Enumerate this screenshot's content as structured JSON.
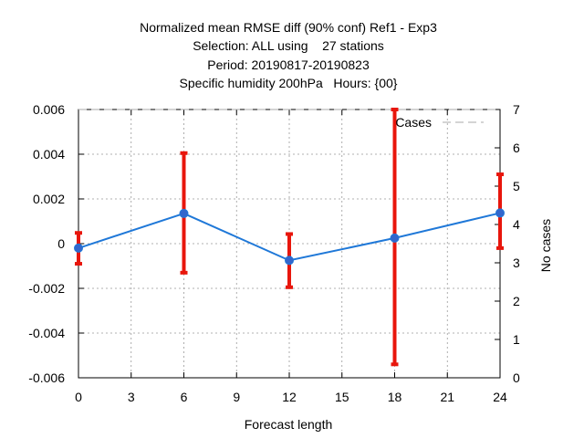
{
  "chart_data": {
    "type": "line",
    "title_lines": [
      "Normalized mean RMSE diff (90% conf) Ref1 - Exp3",
      "Selection: ALL using    27 stations",
      "Period: 20190817-20190823",
      "Specific humidity 200hPa   Hours: {00}"
    ],
    "xlabel": "Forecast length",
    "ylabel_left": "",
    "ylabel_right": "No cases",
    "xlim": [
      0,
      24
    ],
    "ylim": [
      -0.006,
      0.006
    ],
    "ylim_right": [
      0,
      7
    ],
    "x_ticks": [
      0,
      3,
      6,
      9,
      12,
      15,
      18,
      21,
      24
    ],
    "x_tick_labels": [
      "0",
      "3",
      "6",
      "9",
      "12",
      "15",
      "18",
      "21",
      "24"
    ],
    "y_ticks": [
      -0.006,
      -0.004,
      -0.002,
      0,
      0.002,
      0.004,
      0.006
    ],
    "y_tick_labels": [
      "-0.006",
      "-0.004",
      "-0.002",
      "0",
      "0.002",
      "0.004",
      "0.006"
    ],
    "y2_ticks": [
      0,
      1,
      2,
      3,
      4,
      5,
      6,
      7
    ],
    "y2_tick_labels": [
      "0",
      "1",
      "2",
      "3",
      "4",
      "5",
      "6",
      "7"
    ],
    "grid": true,
    "legend": {
      "position": "top-right",
      "entries": [
        "Cases"
      ]
    },
    "series": [
      {
        "x": [
          0,
          6,
          12,
          18,
          24
        ],
        "values": [
          -0.0002,
          0.00135,
          -0.00075,
          0.00025,
          0.00137
        ],
        "err_low": [
          -0.0009,
          -0.0013,
          -0.00195,
          -0.0054,
          -0.0002
        ],
        "err_high": [
          0.00048,
          0.00405,
          0.00043,
          0.006,
          0.0031
        ],
        "color": "#1f78d8"
      },
      {
        "name": "Cases",
        "axis": "right",
        "x": [
          0,
          6,
          12,
          18,
          24
        ],
        "values": [
          7,
          7,
          7,
          7,
          7
        ],
        "color": "#aaaaaa",
        "dash": true
      }
    ],
    "colors": {
      "line": "#1f78d8",
      "errorbar": "#e8160c",
      "grid": "#999999",
      "cases": "#aaaaaa"
    }
  }
}
